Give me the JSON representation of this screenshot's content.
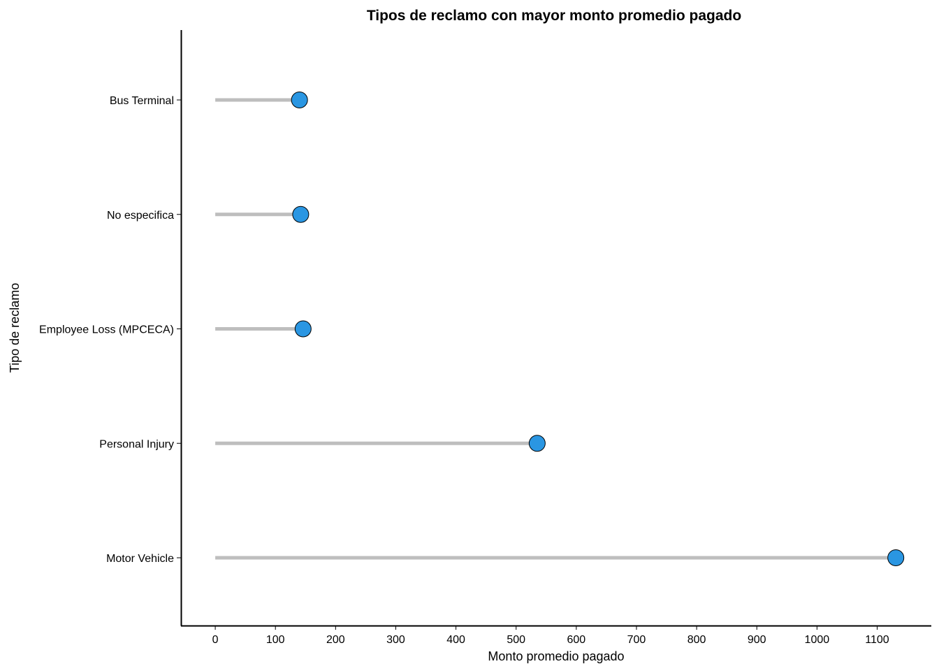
{
  "chart_data": {
    "type": "lollipop",
    "title": "Tipos de reclamo con mayor monto  promedio pagado",
    "xlabel": "Monto promedio pagado",
    "ylabel": "Tipo de reclamo",
    "categories": [
      "Bus Terminal",
      "No especifica",
      "Employee Loss (MPCECA)",
      "Personal Injury",
      "Motor Vehicle"
    ],
    "values": [
      140,
      142,
      146,
      535,
      1131
    ],
    "xlim": [
      -57,
      1190
    ],
    "xticks": [
      0,
      100,
      200,
      300,
      400,
      500,
      600,
      700,
      800,
      900,
      1000,
      1100
    ],
    "grid": false,
    "legend": "none",
    "colors": {
      "point": "#2a96e2",
      "stem": "#bebebe",
      "axis": "#000000"
    }
  }
}
